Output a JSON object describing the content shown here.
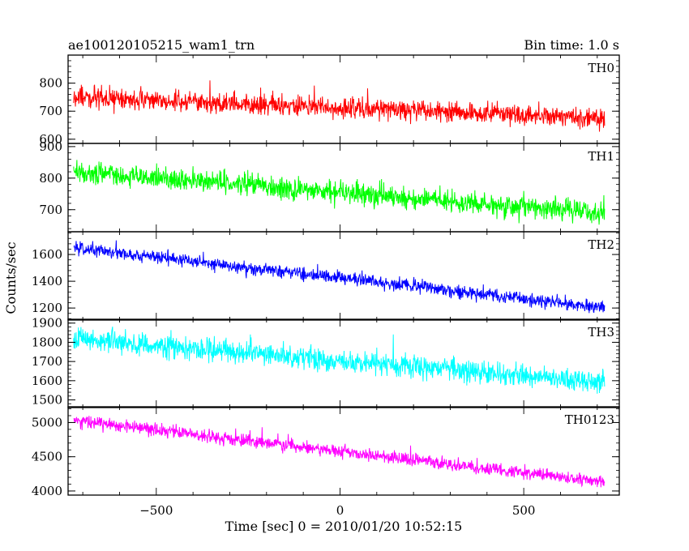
{
  "header": {
    "title": "ae100120105215_wam1_trn",
    "bin_time": "Bin time: 1.0 s"
  },
  "chart_data": {
    "type": "line",
    "x_range": [
      -740,
      760
    ],
    "xlabel": "Time [sec] 0 = 2010/01/20 10:52:15",
    "ylabel": "Counts/sec",
    "x_ticks": [
      -500,
      0,
      500
    ],
    "x_tick_labels": [
      "−500",
      "0",
      "500"
    ],
    "x_data_span": [
      -725,
      720
    ],
    "panels": [
      {
        "name": "TH0",
        "color": "#ff0000",
        "ylim": [
          585,
          900
        ],
        "yticks": [
          600,
          700,
          800
        ],
        "ytick_labels": [
          "600",
          "700",
          "800"
        ],
        "trend_start": 750,
        "trend_end": 675,
        "noise": 30,
        "samples": 1446
      },
      {
        "name": "TH1",
        "color": "#00ff00",
        "ylim": [
          630,
          910
        ],
        "yticks": [
          700,
          800,
          900
        ],
        "ytick_labels": [
          "700",
          "800",
          "900"
        ],
        "trend_start": 820,
        "trend_end": 690,
        "noise": 30,
        "samples": 1446
      },
      {
        "name": "TH2",
        "color": "#0000ff",
        "ylim": [
          1110,
          1770
        ],
        "yticks": [
          1200,
          1400,
          1600
        ],
        "ytick_labels": [
          "1200",
          "1400",
          "1600"
        ],
        "trend_start": 1650,
        "trend_end": 1200,
        "noise": 40,
        "samples": 1446
      },
      {
        "name": "TH3",
        "color": "#00ffff",
        "ylim": [
          1460,
          1920
        ],
        "yticks": [
          1500,
          1600,
          1700,
          1800,
          1900
        ],
        "ytick_labels": [
          "1500",
          "1600",
          "1700",
          "1800",
          "1900"
        ],
        "trend_start": 1820,
        "trend_end": 1590,
        "noise": 50,
        "samples": 1446
      },
      {
        "name": "TH0123",
        "color": "#ff00ff",
        "ylim": [
          3940,
          5230
        ],
        "yticks": [
          4000,
          4500,
          5000
        ],
        "ytick_labels": [
          "4000",
          "4500",
          "5000"
        ],
        "trend_start": 5030,
        "trend_end": 4130,
        "noise": 80,
        "samples": 1446
      }
    ]
  }
}
